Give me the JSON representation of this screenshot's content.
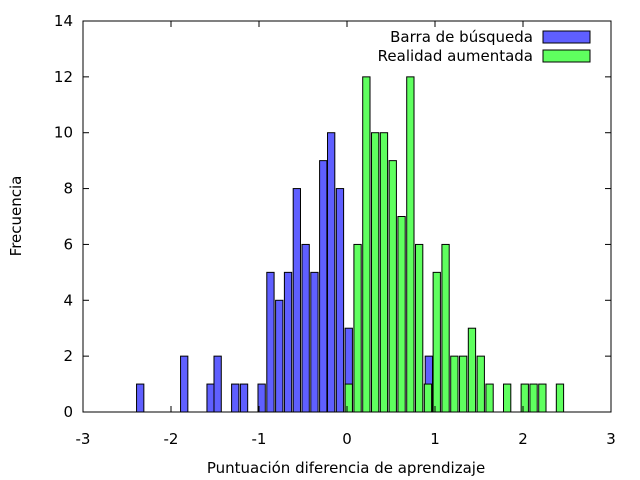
{
  "chart_data": {
    "type": "bar",
    "xlabel": "Puntuación diferencia de aprendizaje",
    "ylabel": "Frecuencia",
    "xlim": [
      -3,
      3
    ],
    "ylim": [
      0,
      14
    ],
    "xticks": [
      "-3",
      "-2",
      "-1",
      "0",
      "1",
      "2",
      "3"
    ],
    "yticks": [
      "0",
      "2",
      "4",
      "6",
      "8",
      "10",
      "12",
      "14"
    ],
    "grid": false,
    "legend_position": "top-right",
    "series": [
      {
        "name": "Barra de búsqueda",
        "color": "#5f5fff",
        "points": [
          {
            "x": -2.35,
            "y": 1
          },
          {
            "x": -1.85,
            "y": 2
          },
          {
            "x": -1.55,
            "y": 1
          },
          {
            "x": -1.47,
            "y": 2
          },
          {
            "x": -1.27,
            "y": 1
          },
          {
            "x": -1.17,
            "y": 1
          },
          {
            "x": -0.97,
            "y": 1
          },
          {
            "x": -0.87,
            "y": 5
          },
          {
            "x": -0.77,
            "y": 4
          },
          {
            "x": -0.67,
            "y": 5
          },
          {
            "x": -0.57,
            "y": 8
          },
          {
            "x": -0.47,
            "y": 6
          },
          {
            "x": -0.37,
            "y": 5
          },
          {
            "x": -0.27,
            "y": 9
          },
          {
            "x": -0.18,
            "y": 10
          },
          {
            "x": -0.08,
            "y": 8
          },
          {
            "x": 0.02,
            "y": 3
          },
          {
            "x": 0.93,
            "y": 2
          }
        ]
      },
      {
        "name": "Realidad aumentada",
        "color": "#5fff5f",
        "points": [
          {
            "x": 0.02,
            "y": 1
          },
          {
            "x": 0.12,
            "y": 6
          },
          {
            "x": 0.22,
            "y": 12
          },
          {
            "x": 0.32,
            "y": 10
          },
          {
            "x": 0.42,
            "y": 10
          },
          {
            "x": 0.52,
            "y": 9
          },
          {
            "x": 0.62,
            "y": 7
          },
          {
            "x": 0.72,
            "y": 12
          },
          {
            "x": 0.82,
            "y": 6
          },
          {
            "x": 0.92,
            "y": 1
          },
          {
            "x": 1.02,
            "y": 5
          },
          {
            "x": 1.12,
            "y": 6
          },
          {
            "x": 1.22,
            "y": 2
          },
          {
            "x": 1.32,
            "y": 2
          },
          {
            "x": 1.42,
            "y": 3
          },
          {
            "x": 1.52,
            "y": 2
          },
          {
            "x": 1.62,
            "y": 1
          },
          {
            "x": 1.82,
            "y": 1
          },
          {
            "x": 2.02,
            "y": 1
          },
          {
            "x": 2.12,
            "y": 1
          },
          {
            "x": 2.22,
            "y": 1
          },
          {
            "x": 2.42,
            "y": 1
          }
        ]
      }
    ]
  }
}
